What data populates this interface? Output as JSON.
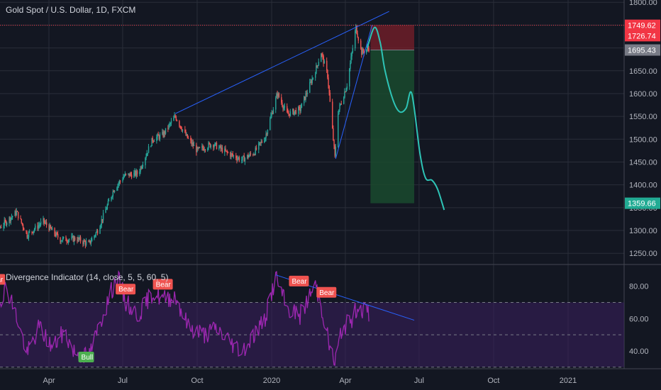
{
  "chart_data": {
    "type": "candlestick",
    "title": "Gold Spot / U.S. Dollar, 1D, FXCM",
    "price_axis": {
      "ticks": [
        1250,
        1300,
        1350,
        1400,
        1450,
        1500,
        1550,
        1600,
        1650,
        1700,
        1750,
        1800
      ],
      "tick_labels": [
        "1250.00",
        "1300.00",
        "1350.00",
        "1400.00",
        "1450.00",
        "1500.00",
        "1550.00",
        "1600.00",
        "1650.00",
        "1700.00",
        "1750.00",
        "1800.00"
      ],
      "ylim": [
        1227,
        1805
      ]
    },
    "time_axis": {
      "labels": [
        "Apr",
        "Jul",
        "Oct",
        "2020",
        "Apr",
        "Jul",
        "Oct",
        "2021"
      ],
      "label_dates": [
        "2019-04-01",
        "2019-07-01",
        "2019-10-01",
        "2020-01-01",
        "2020-04-01",
        "2020-07-01",
        "2020-10-01",
        "2021-01-01"
      ]
    },
    "price_anchors": [
      [
        "2019-01-01",
        1292
      ],
      [
        "2019-01-20",
        1290
      ],
      [
        "2019-02-20",
        1340
      ],
      [
        "2019-03-05",
        1290
      ],
      [
        "2019-03-25",
        1320
      ],
      [
        "2019-04-15",
        1280
      ],
      [
        "2019-05-05",
        1282
      ],
      [
        "2019-05-20",
        1270
      ],
      [
        "2019-05-31",
        1300
      ],
      [
        "2019-06-20",
        1390
      ],
      [
        "2019-07-03",
        1420
      ],
      [
        "2019-07-20",
        1425
      ],
      [
        "2019-08-07",
        1500
      ],
      [
        "2019-08-20",
        1510
      ],
      [
        "2019-09-04",
        1550
      ],
      [
        "2019-09-18",
        1505
      ],
      [
        "2019-10-01",
        1475
      ],
      [
        "2019-10-20",
        1490
      ],
      [
        "2019-11-07",
        1470
      ],
      [
        "2019-11-25",
        1455
      ],
      [
        "2019-12-10",
        1470
      ],
      [
        "2019-12-24",
        1505
      ],
      [
        "2020-01-08",
        1600
      ],
      [
        "2020-01-20",
        1555
      ],
      [
        "2020-02-05",
        1565
      ],
      [
        "2020-02-24",
        1650
      ],
      [
        "2020-03-02",
        1690
      ],
      [
        "2020-03-10",
        1640
      ],
      [
        "2020-03-19",
        1460
      ],
      [
        "2020-03-23",
        1560
      ],
      [
        "2020-04-03",
        1620
      ],
      [
        "2020-04-14",
        1745
      ],
      [
        "2020-04-21",
        1690
      ],
      [
        "2020-04-30",
        1700
      ]
    ],
    "price_labels": [
      {
        "value": 1749.62,
        "text": "1749.62",
        "color": "#f23645"
      },
      {
        "value": 1726.74,
        "text": "1726.74",
        "color": "#f23645"
      },
      {
        "value": 1695.43,
        "text": "1695.43",
        "color": "#787b86"
      },
      {
        "value": 1359.66,
        "text": "1359.66",
        "color": "#22ab94"
      }
    ],
    "position_box": {
      "date_from": "2020-05-02",
      "date_to": "2020-06-25",
      "entry": 1695.43,
      "stop": 1749.62,
      "target": 1359.66
    },
    "projection_path": [
      [
        "2020-04-28",
        1700
      ],
      [
        "2020-05-07",
        1745
      ],
      [
        "2020-05-14",
        1712
      ],
      [
        "2020-05-20",
        1650
      ],
      [
        "2020-05-30",
        1585
      ],
      [
        "2020-06-07",
        1560
      ],
      [
        "2020-06-15",
        1568
      ],
      [
        "2020-06-22",
        1600
      ],
      [
        "2020-07-02",
        1470
      ],
      [
        "2020-07-09",
        1415
      ],
      [
        "2020-07-17",
        1410
      ],
      [
        "2020-07-24",
        1390
      ],
      [
        "2020-08-01",
        1345
      ]
    ],
    "trend_lines": [
      {
        "from": [
          "2019-09-04",
          1556
        ],
        "to": [
          "2020-05-25",
          1780
        ],
        "color": "#2962ff"
      },
      {
        "from": [
          "2020-03-20",
          1457
        ],
        "to": [
          "2020-05-04",
          1750
        ],
        "color": "#2962ff"
      }
    ],
    "indicator": {
      "title": "Divergence Indicator (14, close, 5, 5, 60, 5)",
      "ticks": [
        40,
        60,
        80
      ],
      "tick_labels": [
        "40.00",
        "60.00",
        "80.00"
      ],
      "ylim": [
        29,
        93
      ],
      "band": [
        30,
        70
      ],
      "rsi_anchors": [
        [
          "2019-01-01",
          75
        ],
        [
          "2019-01-20",
          62
        ],
        [
          "2019-02-08",
          80
        ],
        [
          "2019-02-22",
          58
        ],
        [
          "2019-03-05",
          38
        ],
        [
          "2019-03-20",
          55
        ],
        [
          "2019-04-05",
          42
        ],
        [
          "2019-04-20",
          52
        ],
        [
          "2019-05-01",
          40
        ],
        [
          "2019-05-20",
          36
        ],
        [
          "2019-06-05",
          60
        ],
        [
          "2019-06-18",
          78
        ],
        [
          "2019-06-25",
          86
        ],
        [
          "2019-07-05",
          70
        ],
        [
          "2019-07-20",
          62
        ],
        [
          "2019-08-07",
          76
        ],
        [
          "2019-08-20",
          72
        ],
        [
          "2019-09-04",
          74
        ],
        [
          "2019-09-20",
          55
        ],
        [
          "2019-10-10",
          50
        ],
        [
          "2019-10-25",
          54
        ],
        [
          "2019-11-10",
          46
        ],
        [
          "2019-11-25",
          40
        ],
        [
          "2019-12-10",
          50
        ],
        [
          "2019-12-24",
          60
        ],
        [
          "2020-01-06",
          86
        ],
        [
          "2020-01-20",
          66
        ],
        [
          "2020-02-05",
          62
        ],
        [
          "2020-02-24",
          81
        ],
        [
          "2020-03-05",
          62
        ],
        [
          "2020-03-12",
          44
        ],
        [
          "2020-03-19",
          32
        ],
        [
          "2020-03-28",
          55
        ],
        [
          "2020-04-08",
          58
        ],
        [
          "2020-04-16",
          68
        ],
        [
          "2020-04-30",
          63
        ]
      ],
      "divergence_line": {
        "from": [
          "2020-01-06",
          87
        ],
        "to": [
          "2020-06-25",
          59
        ],
        "color": "#2962ff"
      },
      "signals": [
        {
          "label": "Bear",
          "date": "2019-01-01",
          "value": 84
        },
        {
          "label": "Bear",
          "date": "2019-01-15",
          "value": 84
        },
        {
          "label": "Bear",
          "date": "2019-06-25",
          "value": 78
        },
        {
          "label": "Bear",
          "date": "2019-08-10",
          "value": 81
        },
        {
          "label": "Bull",
          "date": "2019-05-10",
          "value": 36
        },
        {
          "label": "Bear",
          "date": "2020-01-25",
          "value": 83
        },
        {
          "label": "Bear",
          "date": "2020-02-28",
          "value": 76
        }
      ]
    },
    "colors": {
      "up": "#26a69a",
      "down": "#ef5350",
      "rsi": "#9c27b0",
      "projection": "#2ec4b6",
      "trend": "#2962ff",
      "grid": "#2a2e39",
      "stop_fill": "#7a1f2a",
      "target_fill": "#1a4a2e"
    },
    "grid": true
  }
}
